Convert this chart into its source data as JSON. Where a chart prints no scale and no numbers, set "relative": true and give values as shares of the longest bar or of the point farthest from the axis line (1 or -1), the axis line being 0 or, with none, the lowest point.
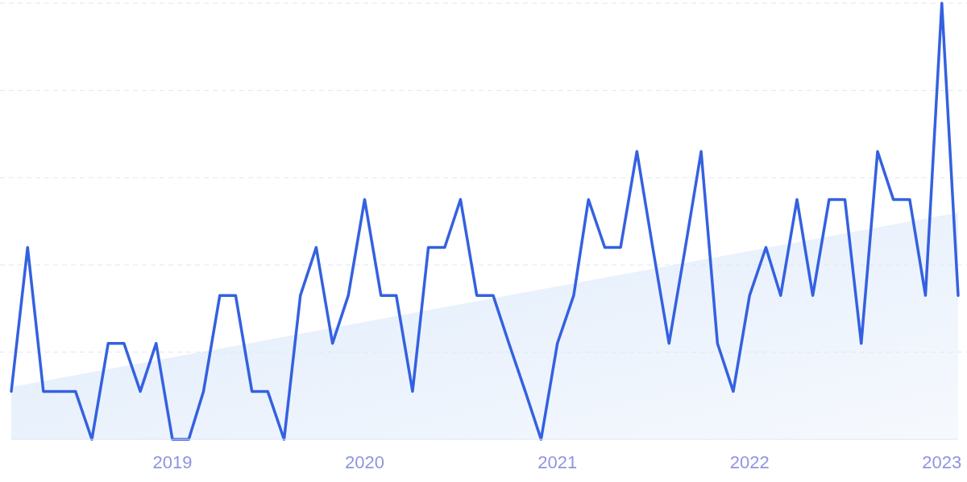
{
  "chart_data": {
    "type": "line",
    "relative": true,
    "grid": "y",
    "xlim": [
      "2018-03",
      "2023-02"
    ],
    "xticks": [
      "2019",
      "2020",
      "2021",
      "2022",
      "2023"
    ],
    "series": [
      {
        "type": "area",
        "color": "#dbe8fa",
        "x": [
          "2018-03",
          "2023-02"
        ],
        "values": [
          0.12,
          0.52
        ]
      },
      {
        "type": "line",
        "color": "#3461e0",
        "x": [
          "2018-03",
          "2018-04",
          "2018-05",
          "2018-06",
          "2018-07",
          "2018-08",
          "2018-09",
          "2018-10",
          "2018-11",
          "2018-12",
          "2019-01",
          "2019-02",
          "2019-03",
          "2019-04",
          "2019-05",
          "2019-06",
          "2019-07",
          "2019-08",
          "2019-09",
          "2019-10",
          "2019-11",
          "2019-12",
          "2020-01",
          "2020-02",
          "2020-03",
          "2020-04",
          "2020-05",
          "2020-06",
          "2020-07",
          "2020-08",
          "2020-09",
          "2020-10",
          "2020-11",
          "2020-12",
          "2021-01",
          "2021-02",
          "2021-03",
          "2021-04",
          "2021-05",
          "2021-06",
          "2021-07",
          "2021-08",
          "2021-09",
          "2021-10",
          "2021-11",
          "2021-12",
          "2022-01",
          "2022-02",
          "2022-03",
          "2022-04",
          "2022-05",
          "2022-06",
          "2022-07",
          "2022-08",
          "2022-09",
          "2022-10",
          "2022-11",
          "2022-12",
          "2023-01",
          "2023-02"
        ],
        "values": [
          0.11,
          0.44,
          0.11,
          0.11,
          0.11,
          0,
          0.22,
          0.22,
          0.11,
          0.22,
          0,
          0,
          0.11,
          0.33,
          0.33,
          0.11,
          0.11,
          0,
          0.33,
          0.44,
          0.22,
          0.33,
          0.55,
          0.33,
          0.33,
          0.11,
          0.44,
          0.44,
          0.55,
          0.33,
          0.33,
          0.22,
          0.11,
          0,
          0.22,
          0.33,
          0.55,
          0.44,
          0.44,
          0.66,
          0.44,
          0.22,
          0.44,
          0.66,
          0.22,
          0.11,
          0.33,
          0.44,
          0.33,
          0.55,
          0.33,
          0.55,
          0.55,
          0.22,
          0.66,
          0.55,
          0.55,
          0.33,
          1,
          0.33
        ]
      }
    ]
  }
}
